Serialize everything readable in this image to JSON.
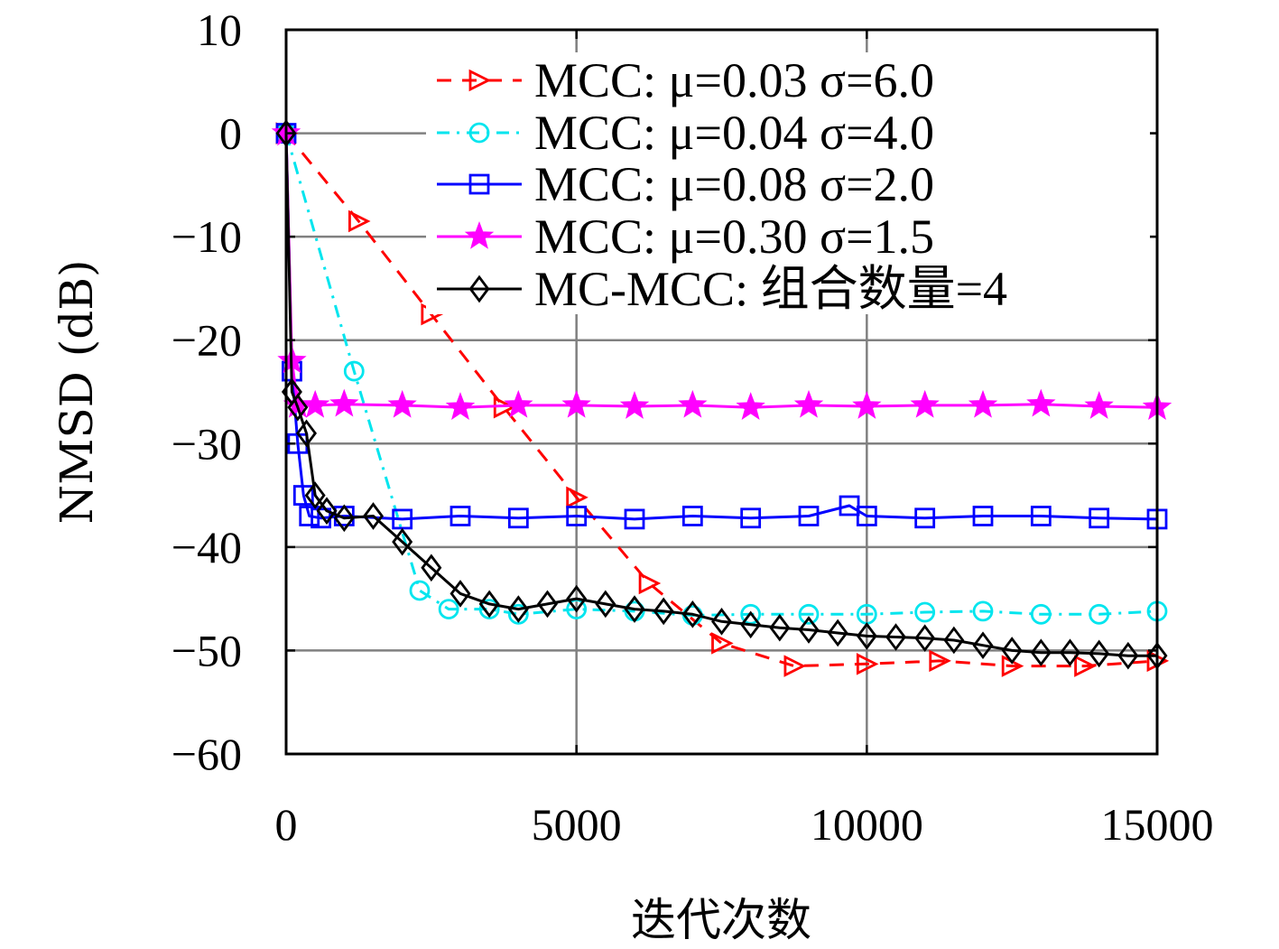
{
  "chart_data": {
    "type": "line",
    "xlabel": "迭代次数",
    "ylabel": "NMSD (dB)",
    "xlim": [
      0,
      15000
    ],
    "ylim": [
      -60,
      10
    ],
    "xticks": [
      0,
      5000,
      10000,
      15000
    ],
    "yticks": [
      10,
      0,
      -10,
      -20,
      -30,
      -40,
      -50,
      -60
    ],
    "xtick_labels": [
      "0",
      "5000",
      "10000",
      "15000"
    ],
    "ytick_labels": [
      "10",
      "0",
      "−10",
      "−20",
      "−30",
      "−40",
      "−50",
      "−60"
    ],
    "grid": true,
    "legend_position": "top-right",
    "series": [
      {
        "name": "MCC: μ=0.03 σ=6.0",
        "color": "#ff0000",
        "line_style": "dashed",
        "marker": "triangle-right",
        "x": [
          0,
          1250,
          2500,
          3750,
          5000,
          6250,
          7500,
          8750,
          10000,
          11250,
          12500,
          13750,
          15000
        ],
        "y": [
          0,
          -8.5,
          -17.5,
          -26.5,
          -35.2,
          -43.5,
          -49.3,
          -51.5,
          -51.3,
          -51,
          -51.5,
          -51.5,
          -51
        ]
      },
      {
        "name": "MCC: μ=0.04 σ=4.0",
        "color": "#00e5ee",
        "line_style": "dash-dot",
        "marker": "circle",
        "x": [
          0,
          1170,
          2300,
          2800,
          3500,
          4000,
          5000,
          6000,
          7000,
          8000,
          9000,
          10000,
          11000,
          12000,
          13000,
          14000,
          15000
        ],
        "y": [
          0,
          -23,
          -44.2,
          -46,
          -46,
          -46.5,
          -46,
          -46.2,
          -46.6,
          -46.5,
          -46.5,
          -46.5,
          -46.3,
          -46.2,
          -46.5,
          -46.5,
          -46.2
        ]
      },
      {
        "name": "MCC: μ=0.08 σ=2.0",
        "color": "#0000ff",
        "line_style": "solid",
        "marker": "square",
        "x": [
          0,
          100,
          200,
          300,
          400,
          600,
          1000,
          2000,
          3000,
          4000,
          5000,
          6000,
          7000,
          8000,
          9000,
          9700,
          10000,
          11000,
          12000,
          13000,
          14000,
          15000
        ],
        "y": [
          0,
          -23,
          -30,
          -35,
          -37,
          -37.2,
          -37,
          -37.3,
          -37,
          -37.2,
          -37,
          -37.3,
          -37,
          -37.2,
          -37,
          -36,
          -37,
          -37.2,
          -37,
          -37,
          -37.2,
          -37.3
        ]
      },
      {
        "name": "MCC: μ=0.30 σ=1.5",
        "color": "#ff00ff",
        "line_style": "solid",
        "marker": "star",
        "x": [
          0,
          100,
          200,
          500,
          1000,
          2000,
          3000,
          4000,
          5000,
          6000,
          7000,
          8000,
          9000,
          10000,
          11000,
          12000,
          13000,
          14000,
          15000
        ],
        "y": [
          0,
          -22,
          -26.3,
          -26.3,
          -26.2,
          -26.3,
          -26.5,
          -26.3,
          -26.3,
          -26.4,
          -26.3,
          -26.5,
          -26.3,
          -26.4,
          -26.3,
          -26.3,
          -26.2,
          -26.4,
          -26.5
        ]
      },
      {
        "name": "MC-MCC: 组合数量=4",
        "color": "#000000",
        "line_style": "solid",
        "marker": "diamond",
        "x": [
          0,
          100,
          200,
          350,
          500,
          700,
          1000,
          1500,
          2000,
          2500,
          3000,
          3500,
          4000,
          4500,
          5000,
          5500,
          6000,
          6500,
          7000,
          7500,
          8000,
          8500,
          9000,
          9500,
          10000,
          10500,
          11000,
          11500,
          12000,
          12500,
          13000,
          13500,
          14000,
          14500,
          15000
        ],
        "y": [
          0,
          -25,
          -26.5,
          -29,
          -35,
          -36.5,
          -37.2,
          -37,
          -39.5,
          -42,
          -44.5,
          -45.5,
          -46,
          -45.5,
          -45,
          -45.5,
          -46,
          -46.2,
          -46.5,
          -47.2,
          -47.5,
          -47.8,
          -48,
          -48.3,
          -48.6,
          -48.7,
          -48.8,
          -49,
          -49.5,
          -50,
          -50.2,
          -50.2,
          -50.3,
          -50.5,
          -50.5
        ]
      }
    ]
  }
}
